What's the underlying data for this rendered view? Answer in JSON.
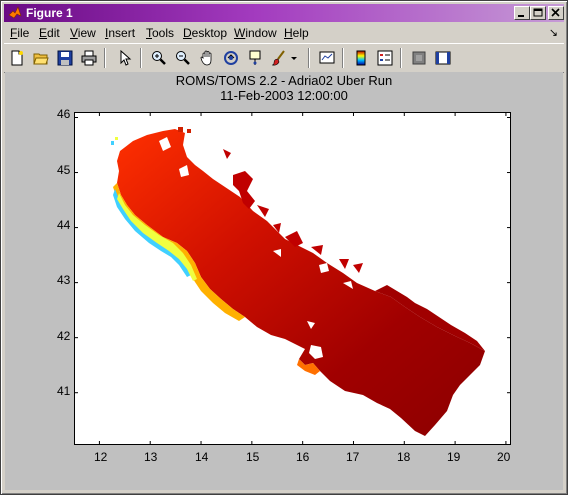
{
  "window": {
    "title": "Figure 1",
    "controls": [
      "minimize",
      "maximize",
      "close"
    ]
  },
  "menubar": {
    "items": [
      {
        "key": "file",
        "label": "File",
        "mnemonic": "F",
        "rest": "ile"
      },
      {
        "key": "edit",
        "label": "Edit",
        "mnemonic": "E",
        "rest": "dit"
      },
      {
        "key": "view",
        "label": "View",
        "mnemonic": "V",
        "rest": "iew"
      },
      {
        "key": "insert",
        "label": "Insert",
        "mnemonic": "I",
        "rest": "nsert"
      },
      {
        "key": "tools",
        "label": "Tools",
        "mnemonic": "T",
        "rest": "ools"
      },
      {
        "key": "desktop",
        "label": "Desktop",
        "mnemonic": "D",
        "rest": "esktop"
      },
      {
        "key": "window",
        "label": "Window",
        "mnemonic": "W",
        "rest": "indow"
      },
      {
        "key": "help",
        "label": "Help",
        "mnemonic": "H",
        "rest": "elp"
      }
    ],
    "dock_arrow": "↘"
  },
  "toolbar": {
    "buttons": [
      "new-file-icon",
      "open-folder-icon",
      "save-icon",
      "print-icon",
      "pointer-icon",
      "zoom-in-icon",
      "zoom-out-icon",
      "pan-hand-icon",
      "rotate-3d-icon",
      "data-cursor-icon",
      "brush-icon",
      "link-plot-icon",
      "colorbar-icon",
      "legend-icon",
      "hide-plot-tools-icon",
      "show-plot-tools-icon"
    ]
  },
  "plot": {
    "title_line1": "ROMS/TOMS 2.2 - Adria02 Uber Run",
    "title_line2": "11-Feb-2003 12:00:00"
  },
  "chart_data": {
    "type": "heatmap",
    "x_ticks": [
      12,
      13,
      14,
      15,
      16,
      17,
      18,
      19,
      20
    ],
    "y_ticks": [
      41,
      42,
      43,
      44,
      45,
      46
    ],
    "xlim": [
      11.5,
      20.1
    ],
    "ylim": [
      40.05,
      46.1
    ],
    "colormap": "jet",
    "region": "Adriatic Sea",
    "grid": false
  }
}
